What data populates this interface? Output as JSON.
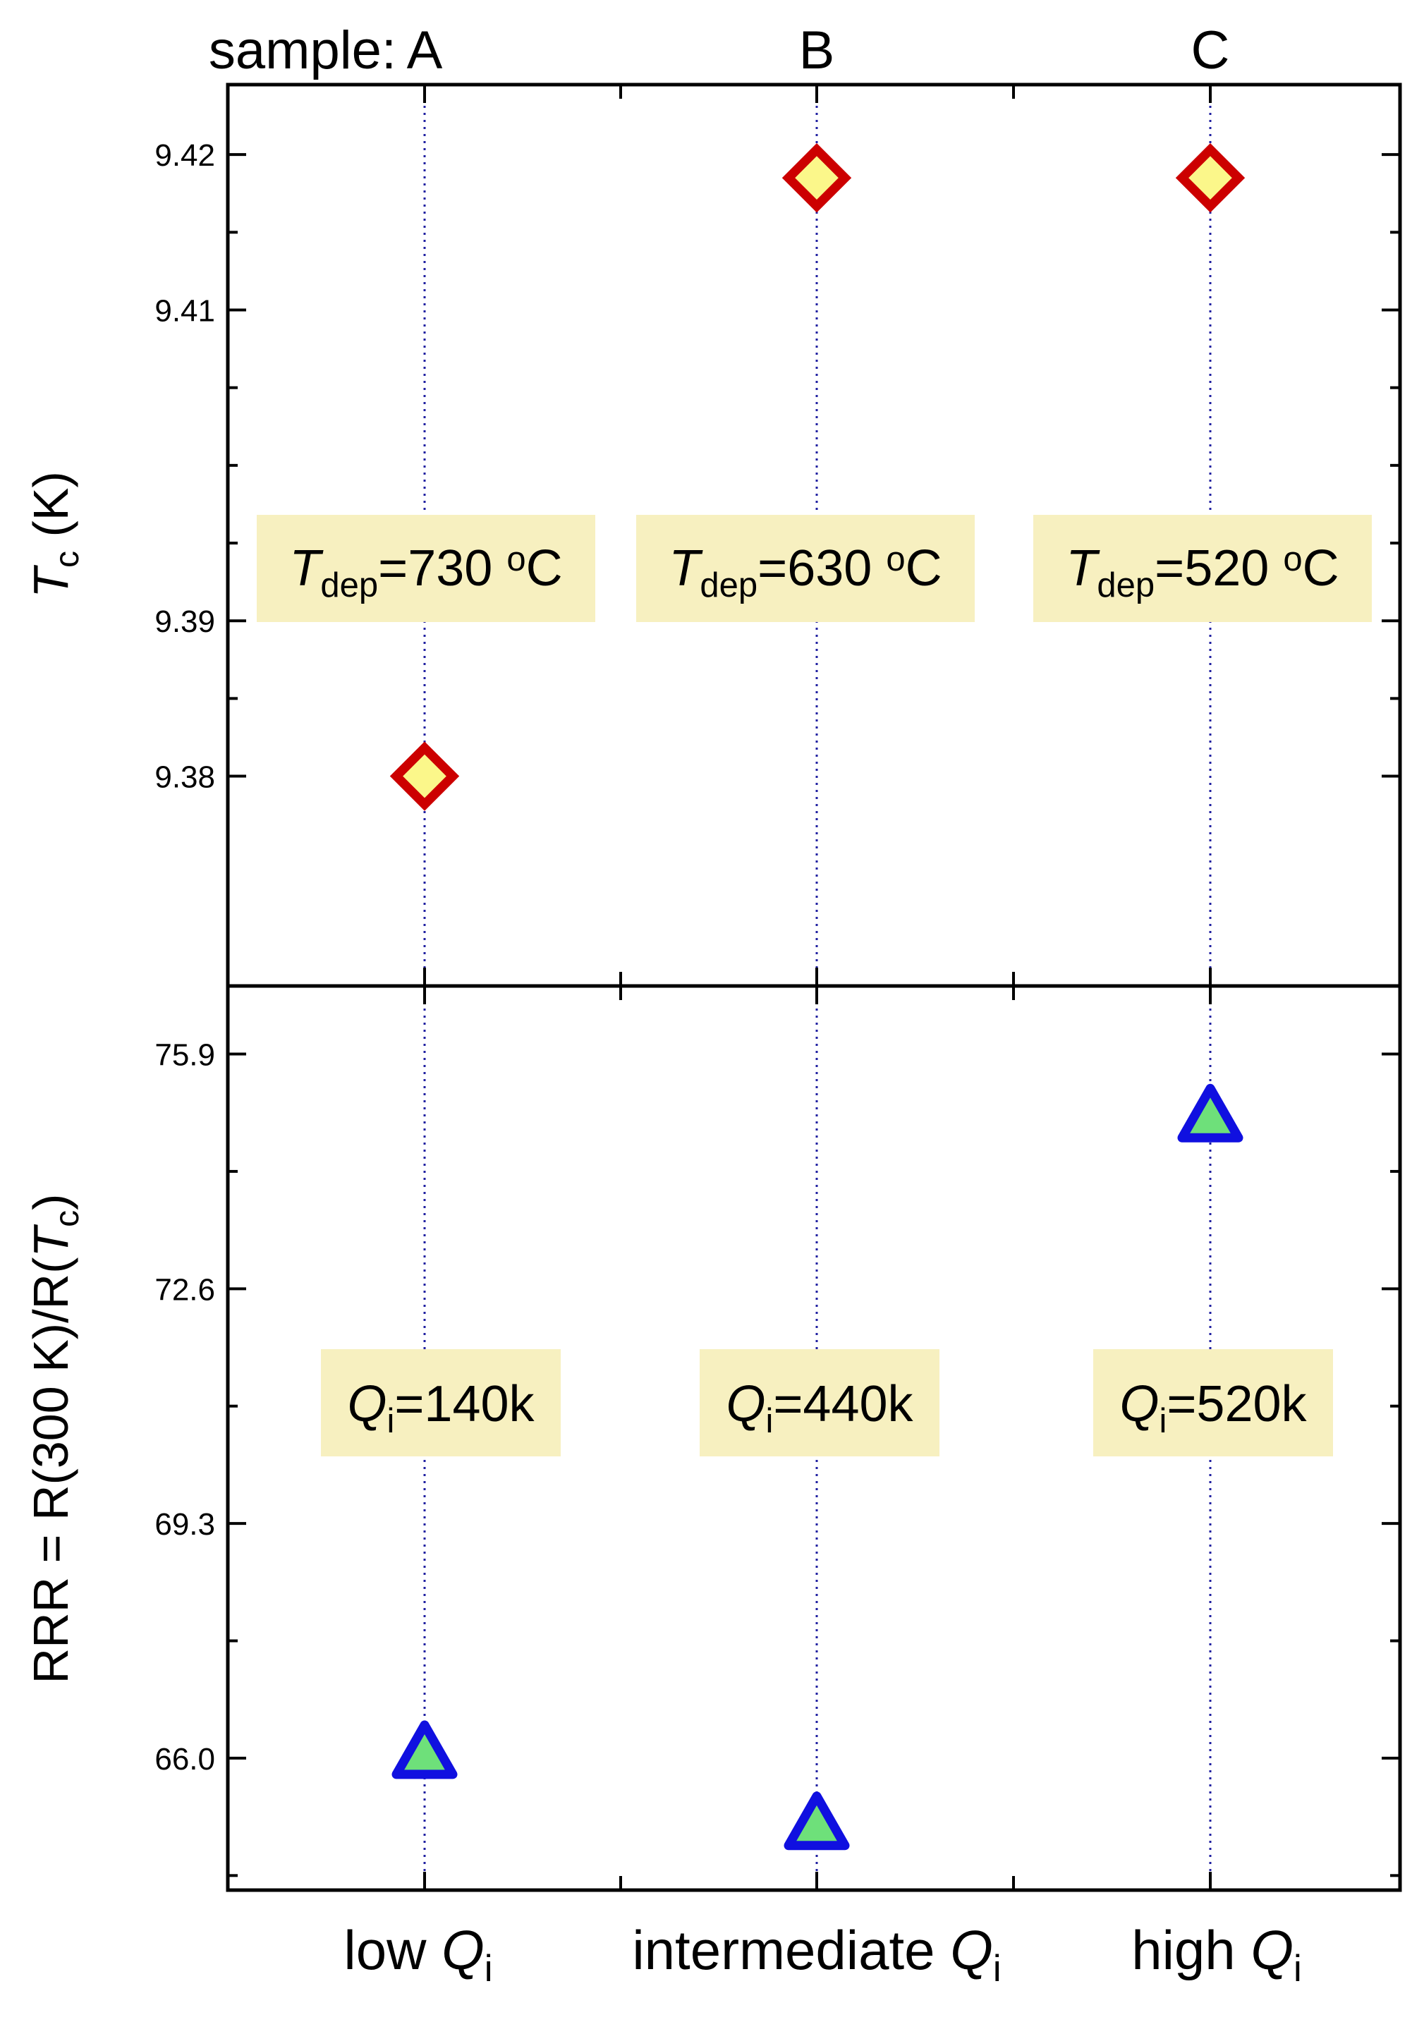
{
  "chart_data": [
    {
      "type": "scatter",
      "panel": "top",
      "ylabel": "T_c (K)",
      "ylabel_parts": {
        "main": "T",
        "sub": "c",
        "unit": " (K)"
      },
      "ylim": [
        9.3665,
        9.4245
      ],
      "yticks": [
        9.38,
        9.39,
        9.41,
        9.42
      ],
      "ytick_labels": [
        "9.38",
        "9.39",
        "9.41",
        "9.42"
      ],
      "y_minor_ticks": [
        9.385,
        9.395,
        9.4,
        9.405,
        9.415
      ],
      "marker": "diamond",
      "marker_fill": "#FBF78A",
      "marker_edge": "#CC0000",
      "points": [
        {
          "x": "A",
          "y": 9.38
        },
        {
          "x": "B",
          "y": 9.4185
        },
        {
          "x": "C",
          "y": 9.4185
        }
      ],
      "annotations": [
        {
          "x": "A",
          "italic": "T",
          "sub": "dep",
          "rest": "=730 ",
          "sup": "o",
          "unit": "C"
        },
        {
          "x": "B",
          "italic": "T",
          "sub": "dep",
          "rest": "=630 ",
          "sup": "o",
          "unit": "C"
        },
        {
          "x": "C",
          "italic": "T",
          "sub": "dep",
          "rest": "=520 ",
          "sup": "o",
          "unit": "C"
        }
      ]
    },
    {
      "type": "scatter",
      "panel": "bottom",
      "ylabel": "RRR = R(300 K)/R(T_c)",
      "ylabel_parts": {
        "main": "RRR = R(300 K)/R(",
        "italic": "T",
        "sub": "c",
        "end": ")"
      },
      "ylim": [
        64.145,
        76.857
      ],
      "yticks": [
        66.0,
        69.3,
        72.6,
        75.9
      ],
      "ytick_labels": [
        "66.0",
        "69.3",
        "72.6",
        "75.9"
      ],
      "y_minor_ticks": [
        64.35,
        67.65,
        70.95,
        74.25
      ],
      "marker": "triangle",
      "marker_fill": "#6EE07A",
      "marker_edge": "#1010E0",
      "points": [
        {
          "x": "A",
          "y": 66.05
        },
        {
          "x": "B",
          "y": 65.05
        },
        {
          "x": "C",
          "y": 75.0
        }
      ],
      "annotations": [
        {
          "x": "A",
          "italic": "Q",
          "sub": "i",
          "rest": "=140k"
        },
        {
          "x": "B",
          "italic": "Q",
          "sub": "i",
          "rest": "=440k"
        },
        {
          "x": "C",
          "italic": "Q",
          "sub": "i",
          "rest": "=520k"
        }
      ]
    }
  ],
  "x_axis": {
    "categories": [
      "A",
      "B",
      "C"
    ],
    "category_labels": [
      {
        "text": "low ",
        "italic": "Q",
        "sub": "i"
      },
      {
        "text": "intermediate ",
        "italic": "Q",
        "sub": "i"
      },
      {
        "text": "high ",
        "italic": "Q",
        "sub": "i"
      }
    ],
    "top_prefix": "sample: ",
    "top_labels": [
      "A",
      "B",
      "C"
    ]
  },
  "colors": {
    "guide_line": "#1f1fa0",
    "annotation_box": "#F7F0C0",
    "axes": "#000000"
  }
}
